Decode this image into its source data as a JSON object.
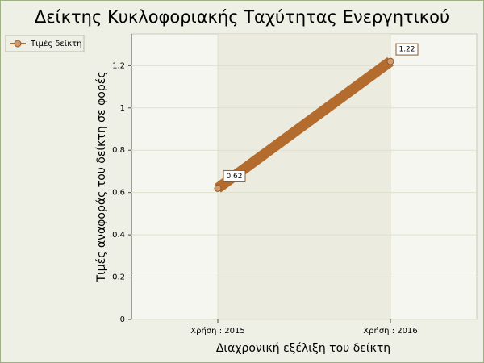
{
  "chart_data": {
    "type": "line",
    "title": "Δείκτης Κυκλοφοριακής Ταχύτητας Ενεργητικού",
    "x_label": "Διαχρονική εξέλιξη του δείκτη",
    "y_label": "Τιμές αναφοράς του δείκτη σε φορές",
    "categories": [
      "Χρήση : 2015",
      "Χρήση : 2016"
    ],
    "series": [
      {
        "name": "Τιμές δείκτη",
        "color": "#b36b2e",
        "values": [
          0.62,
          1.22
        ]
      }
    ],
    "ylim": [
      0,
      1.35
    ],
    "yticks": [
      0,
      0.2,
      0.4,
      0.6,
      0.8,
      1,
      1.2
    ],
    "grid": true,
    "legend": "top-left"
  }
}
